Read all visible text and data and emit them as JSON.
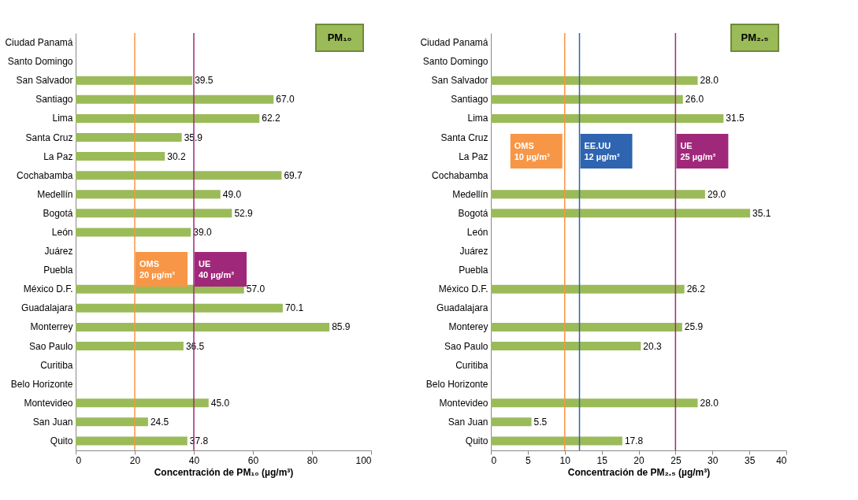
{
  "chart_data": [
    {
      "type": "bar",
      "orientation": "horizontal",
      "title": "PM₁₀",
      "xlabel": "Concentración de PM₁₀ (µg/m³)",
      "categories": [
        "Ciudad Panamá",
        "Santo Domingo",
        "San Salvador",
        "Santiago",
        "Lima",
        "Santa Cruz",
        "La Paz",
        "Cochabamba",
        "Medellín",
        "Bogotá",
        "León",
        "Juárez",
        "Puebla",
        "México D.F.",
        "Guadalajara",
        "Monterrey",
        "Sao Paulo",
        "Curitiba",
        "Belo Horizonte",
        "Montevideo",
        "San Juan",
        "Quito"
      ],
      "values": [
        null,
        null,
        39.5,
        67.0,
        62.2,
        35.9,
        30.2,
        69.7,
        49.0,
        52.9,
        39.0,
        null,
        null,
        57.0,
        70.1,
        85.9,
        36.5,
        null,
        null,
        45.0,
        24.5,
        37.8
      ],
      "value_labels": [
        null,
        null,
        "39.5",
        "67.0",
        "62.2",
        "35.9",
        "30.2",
        "69.7",
        "49.0",
        "52.9",
        "39.0",
        null,
        null,
        "57.0",
        "70.1",
        "85.9",
        "36.5",
        null,
        null,
        "45.0",
        "24.5",
        "37.8"
      ],
      "color": "#9bbb59",
      "xlim": [
        0,
        100
      ],
      "xticks": [
        0,
        20,
        40,
        60,
        80,
        100
      ],
      "grid": false,
      "ref_lines": [
        {
          "axis": "x",
          "value": 20,
          "label": "OMS 20 µg/m³",
          "color": "#f79646"
        },
        {
          "axis": "x",
          "value": 40,
          "label": "UE 40 µg/m³",
          "color": "#a0287a"
        }
      ]
    },
    {
      "type": "bar",
      "orientation": "horizontal",
      "title": "PM₂.₅",
      "xlabel": "Concentración de PM₂.₅ (µg/m³)",
      "categories": [
        "Ciudad Panamá",
        "Santo Domingo",
        "San Salvador",
        "Santiago",
        "Lima",
        "Santa Cruz",
        "La Paz",
        "Cochabamba",
        "Medellín",
        "Bogotá",
        "León",
        "Juárez",
        "Puebla",
        "México D.F.",
        "Guadalajara",
        "Monterey",
        "Sao Paulo",
        "Curitiba",
        "Belo Horizonte",
        "Montevideo",
        "San Juan",
        "Quito"
      ],
      "values": [
        null,
        null,
        28.0,
        26.0,
        31.5,
        null,
        null,
        null,
        29.0,
        35.1,
        null,
        null,
        null,
        26.2,
        null,
        25.9,
        20.3,
        null,
        null,
        28.0,
        5.5,
        17.8
      ],
      "value_labels": [
        null,
        null,
        "28.0",
        "26.0",
        "31.5",
        null,
        null,
        null,
        "29.0",
        "35.1",
        null,
        null,
        null,
        "26.2",
        null,
        "25.9",
        "20.3",
        null,
        null,
        "28.0",
        "5.5",
        "17.8"
      ],
      "color": "#9bbb59",
      "xlim": [
        0,
        40
      ],
      "xticks": [
        0,
        5,
        10,
        15,
        20,
        25,
        30,
        35,
        40
      ],
      "grid": false,
      "ref_lines": [
        {
          "axis": "x",
          "value": 10,
          "label": "OMS 10 µg/m³",
          "color": "#f79646"
        },
        {
          "axis": "x",
          "value": 12,
          "label": "EE.UU 12 µg/m³",
          "color": "#2e64b0"
        },
        {
          "axis": "x",
          "value": 25,
          "label": "UE 25 µg/m³",
          "color": "#a0287a"
        }
      ]
    }
  ]
}
